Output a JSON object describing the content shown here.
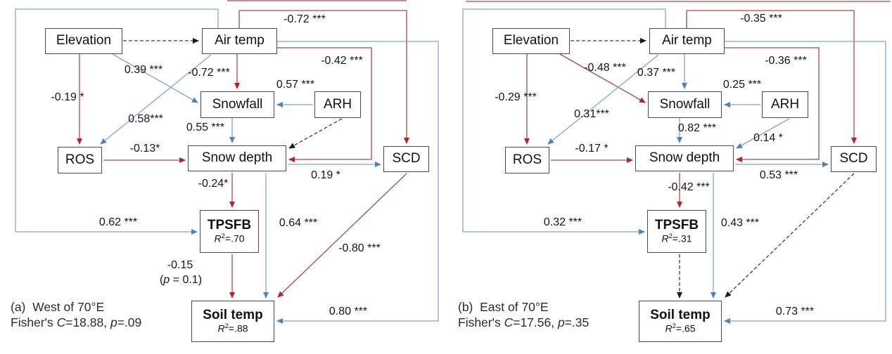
{
  "figure": {
    "colors": {
      "pos": {
        "line": "#7FA6CF",
        "arrow": "#4F81BD"
      },
      "neg": {
        "line": "#A34A4F",
        "arrow": "#BE1E24"
      },
      "dash": {
        "line": "#3D3D3D",
        "arrow": "#1A1A1A"
      }
    },
    "diagrams": [
      {
        "id": "a",
        "caption": "(a)  West of 70°E",
        "fisher": [
          {
            "t": "Fisher's "
          },
          {
            "t": "C",
            "i": 1
          },
          {
            "t": "=18.88, "
          },
          {
            "t": "p",
            "i": 1
          },
          {
            "t": "=.09"
          }
        ],
        "nodes": {
          "elevation": {
            "label": "Elevation"
          },
          "airtemp": {
            "label": "Air temp"
          },
          "snowfall": {
            "label": "Snowfall"
          },
          "arh": {
            "label": "ARH"
          },
          "ros": {
            "label": "ROS"
          },
          "snowdepth": {
            "label": "Snow depth"
          },
          "scd": {
            "label": "SCD"
          },
          "tpsfb": {
            "label": "TPSFB",
            "r2": [
              {
                "t": "R",
                "i": 1
              },
              {
                "t": "2",
                "sup": 1
              },
              {
                "t": "=.70"
              }
            ]
          },
          "soiltemp": {
            "label": "Soil temp",
            "r2": [
              {
                "t": "R",
                "i": 1
              },
              {
                "t": "2",
                "sup": 1
              },
              {
                "t": "=.88"
              }
            ]
          }
        },
        "edges": {
          "elev_air": {
            "type": "dash"
          },
          "air_scd": {
            "type": "neg",
            "label": "-0.72 ***"
          },
          "air_tpsfb": {
            "type": "pos",
            "label": "0.62 ***"
          },
          "air_soiltemp": {
            "type": "pos",
            "label": "0.80 ***"
          },
          "air_snowdepth": {
            "type": "neg",
            "label": "-0.42 ***"
          },
          "air_snowfall": {
            "type": "neg",
            "label": "-0.72 ***"
          },
          "elev_snowfall": {
            "type": "pos",
            "label": "0.39 ***"
          },
          "air_ros": {
            "type": "pos",
            "label": "0.58***"
          },
          "elev_ros": {
            "type": "neg",
            "label": "-0.19 *"
          },
          "arh_snowfall": {
            "type": "pos",
            "label": "0.57 ***"
          },
          "arh_snowdepth": {
            "type": "dash"
          },
          "snowfall_snowdepth": {
            "type": "pos",
            "label": "0.55 ***"
          },
          "ros_snowdepth": {
            "type": "neg",
            "label": "-0.13*"
          },
          "snowdepth_scd": {
            "type": "pos",
            "label": "0.19 *"
          },
          "snowdepth_tpsfb": {
            "type": "neg",
            "label": "-0.24*"
          },
          "snowdepth_soiltemp": {
            "type": "pos",
            "label": "0.64 ***"
          },
          "scd_soiltemp": {
            "type": "neg",
            "label": "-0.80 ***"
          },
          "tpsfb_soiltemp": {
            "type": "neg",
            "label": "-0.15",
            "label2": [
              {
                "t": "("
              },
              {
                "t": "p",
                "i": 1
              },
              {
                "t": " = 0.1)"
              }
            ]
          },
          "top_crop": {
            "type": "neg"
          }
        }
      },
      {
        "id": "b",
        "caption": "(b)  East of 70°E",
        "fisher": [
          {
            "t": "Fisher's "
          },
          {
            "t": "C",
            "i": 1
          },
          {
            "t": "=17.56, "
          },
          {
            "t": "p",
            "i": 1
          },
          {
            "t": "=.35"
          }
        ],
        "nodes": {
          "elevation": {
            "label": "Elevation"
          },
          "airtemp": {
            "label": "Air temp"
          },
          "snowfall": {
            "label": "Snowfall"
          },
          "arh": {
            "label": "ARH"
          },
          "ros": {
            "label": "ROS"
          },
          "snowdepth": {
            "label": "Snow depth"
          },
          "scd": {
            "label": "SCD"
          },
          "tpsfb": {
            "label": "TPSFB",
            "r2": [
              {
                "t": "R",
                "i": 1
              },
              {
                "t": "2",
                "sup": 1
              },
              {
                "t": "=.31"
              }
            ]
          },
          "soiltemp": {
            "label": "Soil temp",
            "r2": [
              {
                "t": "R",
                "i": 1
              },
              {
                "t": "2",
                "sup": 1
              },
              {
                "t": "=.65"
              }
            ]
          }
        },
        "edges": {
          "elev_air": {
            "type": "dash"
          },
          "air_scd": {
            "type": "neg",
            "label": "-0.35 ***"
          },
          "air_tpsfb": {
            "type": "pos",
            "label": "0.32 ***"
          },
          "air_soiltemp": {
            "type": "pos",
            "label": "0.73 ***"
          },
          "air_snowdepth": {
            "type": "neg",
            "label": "-0.36 ***"
          },
          "air_snowfall": {
            "type": "pos",
            "label": "0.37 ***"
          },
          "elev_snowfall": {
            "type": "neg",
            "label": "-0.48 ***"
          },
          "air_ros": {
            "type": "pos",
            "label": "0.31***"
          },
          "elev_ros": {
            "type": "neg",
            "label": "-0.29 ***"
          },
          "arh_snowfall": {
            "type": "pos",
            "label": "0.25 ***"
          },
          "arh_snowdepth": {
            "type": "pos",
            "label": "0.14 *"
          },
          "snowfall_snowdepth": {
            "type": "pos",
            "label": "0.82 ***"
          },
          "ros_snowdepth": {
            "type": "neg",
            "label": "-0.17 *"
          },
          "snowdepth_scd": {
            "type": "pos",
            "label": "0.53 ***"
          },
          "snowdepth_tpsfb": {
            "type": "neg",
            "label": "-0.42 ***"
          },
          "snowdepth_soiltemp": {
            "type": "pos",
            "label": "0.43 ***"
          },
          "scd_soiltemp": {
            "type": "dash"
          },
          "tpsfb_soiltemp": {
            "type": "dash"
          },
          "top_crop": {
            "type": "neg"
          }
        }
      }
    ]
  }
}
